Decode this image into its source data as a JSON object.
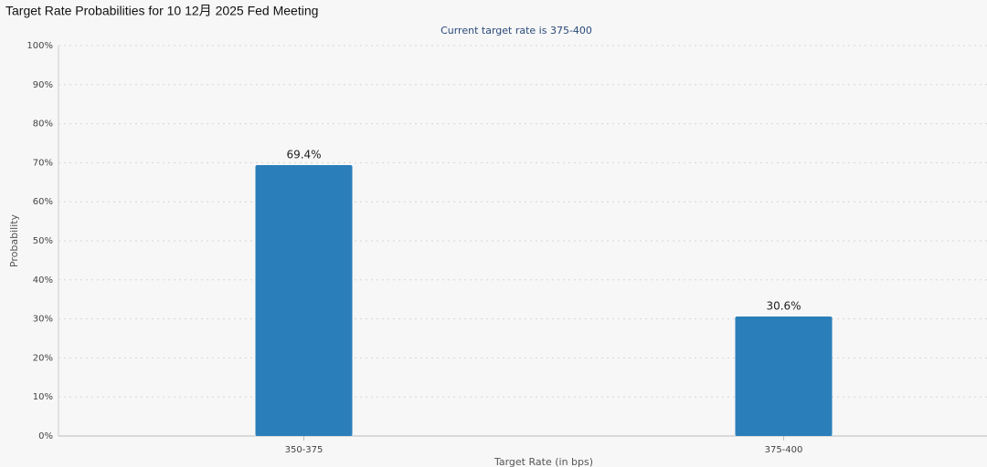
{
  "chart_data": {
    "type": "bar",
    "title": "Target Rate Probabilities for 10 12月 2025 Fed Meeting",
    "subtitle": "Current target rate is 375-400",
    "x_label": "Target Rate (in bps)",
    "y_label": "Probability",
    "categories": [
      "350-375",
      "375-400"
    ],
    "values": [
      69.4,
      30.6
    ],
    "value_labels": [
      "69.4%",
      "30.6%"
    ],
    "color": "#2a7fba",
    "ylim": [
      0,
      100
    ],
    "yticks": [
      {
        "value": 0,
        "label": "0%"
      },
      {
        "value": 10,
        "label": "10%"
      },
      {
        "value": 20,
        "label": "20%"
      },
      {
        "value": 30,
        "label": "30%"
      },
      {
        "value": 40,
        "label": "40%"
      },
      {
        "value": 50,
        "label": "50%"
      },
      {
        "value": 60,
        "label": "60%"
      },
      {
        "value": 70,
        "label": "70%"
      },
      {
        "value": 80,
        "label": "80%"
      },
      {
        "value": 90,
        "label": "90%"
      },
      {
        "value": 100,
        "label": "100%"
      }
    ],
    "grid": true
  }
}
